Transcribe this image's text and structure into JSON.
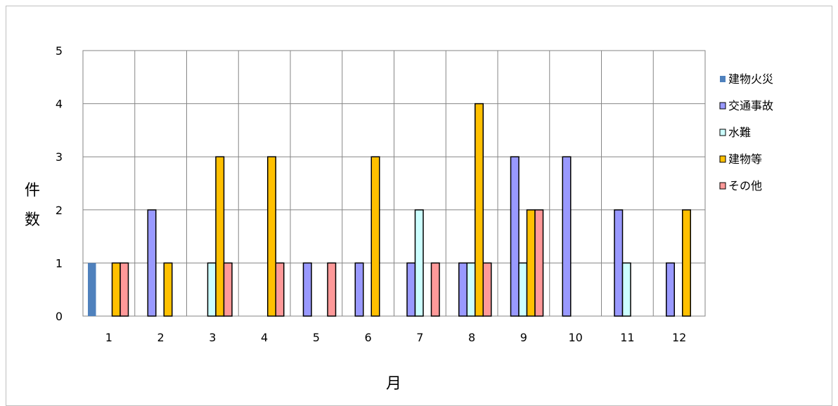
{
  "chart_data": {
    "type": "bar",
    "title": "",
    "xlabel": "月",
    "ylabel_chars": [
      "件",
      "数"
    ],
    "ylim": [
      0,
      5
    ],
    "yticks": [
      0,
      1,
      2,
      3,
      4,
      5
    ],
    "grid": true,
    "legend_position": "right",
    "categories": [
      "1",
      "2",
      "3",
      "4",
      "5",
      "6",
      "7",
      "8",
      "9",
      "10",
      "11",
      "12"
    ],
    "series": [
      {
        "name": "建物火災",
        "color": "#4f81bd",
        "outline": false,
        "values": [
          1,
          0,
          0,
          0,
          0,
          0,
          0,
          0,
          0,
          0,
          0,
          0
        ]
      },
      {
        "name": "交通事故",
        "color": "#9999ff",
        "outline": true,
        "values": [
          0,
          2,
          0,
          0,
          1,
          1,
          1,
          1,
          3,
          3,
          2,
          1
        ]
      },
      {
        "name": "水難",
        "color": "#ccffff",
        "outline": true,
        "values": [
          0,
          0,
          1,
          0,
          0,
          0,
          2,
          1,
          1,
          0,
          1,
          0
        ]
      },
      {
        "name": "建物等",
        "color": "#ffc000",
        "outline": true,
        "values": [
          1,
          1,
          3,
          3,
          0,
          3,
          0,
          4,
          2,
          0,
          0,
          2
        ]
      },
      {
        "name": "その他",
        "color": "#ff9999",
        "outline": true,
        "values": [
          1,
          0,
          1,
          1,
          1,
          0,
          1,
          1,
          2,
          0,
          0,
          0
        ]
      }
    ]
  }
}
